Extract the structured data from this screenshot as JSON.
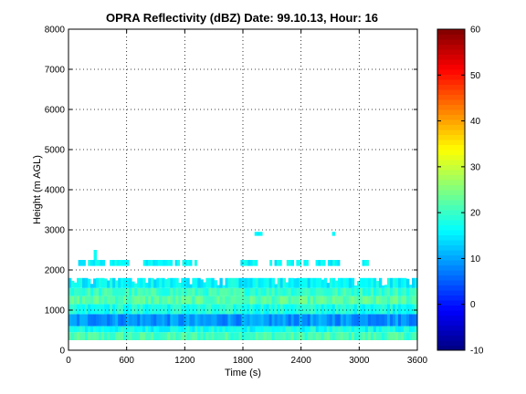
{
  "title": "OPRA Reflectivity (dBZ)  Date: 99.10.13, Hour: 16",
  "chart_data": {
    "type": "heatmap",
    "title": "OPRA Reflectivity (dBZ)  Date: 99.10.13, Hour: 16",
    "xlabel": "Time (s)",
    "ylabel": "Height (m AGL)",
    "xlim": [
      0,
      3600
    ],
    "ylim": [
      0,
      8000
    ],
    "x_ticks": [
      0,
      600,
      1200,
      1800,
      2400,
      3000,
      3600
    ],
    "y_ticks": [
      0,
      1000,
      2000,
      3000,
      4000,
      5000,
      6000,
      7000,
      8000
    ],
    "grid": true,
    "colormap": "jet",
    "clim": [
      -10,
      60
    ],
    "colorbar_ticks": [
      -10,
      0,
      10,
      20,
      30,
      40,
      50,
      60
    ],
    "bands": [
      {
        "h0": 250,
        "h1": 450,
        "dbz": 21
      },
      {
        "h0": 450,
        "h1": 600,
        "dbz": 17
      },
      {
        "h0": 600,
        "h1": 900,
        "dbz": 9
      },
      {
        "h0": 900,
        "h1": 1150,
        "dbz": 18
      },
      {
        "h0": 1150,
        "h1": 1350,
        "dbz": 22
      },
      {
        "h0": 1350,
        "h1": 1550,
        "dbz": 20
      },
      {
        "h0": 1550,
        "h1": 1800,
        "dbz": 16
      }
    ],
    "patches": [
      {
        "t0": 100,
        "t1": 650,
        "h0": 2100,
        "h1": 2250,
        "dbz": 16
      },
      {
        "t0": 230,
        "t1": 290,
        "h0": 2250,
        "h1": 2500,
        "dbz": 16
      },
      {
        "t0": 770,
        "t1": 1350,
        "h0": 2100,
        "h1": 2250,
        "dbz": 16
      },
      {
        "t0": 1750,
        "t1": 2500,
        "h0": 2100,
        "h1": 2250,
        "dbz": 16
      },
      {
        "t0": 1800,
        "t1": 1830,
        "h0": 1950,
        "h1": 2100,
        "dbz": 16
      },
      {
        "t0": 2550,
        "t1": 2800,
        "h0": 2100,
        "h1": 2250,
        "dbz": 16
      },
      {
        "t0": 3030,
        "t1": 3120,
        "h0": 2100,
        "h1": 2250,
        "dbz": 16
      },
      {
        "t0": 1920,
        "t1": 2000,
        "h0": 2850,
        "h1": 2950,
        "dbz": 16
      },
      {
        "t0": 2720,
        "t1": 2750,
        "h0": 2850,
        "h1": 2950,
        "dbz": 16
      },
      {
        "t0": 0,
        "t1": 30,
        "h0": 2850,
        "h1": 2950,
        "dbz": 16
      }
    ]
  }
}
